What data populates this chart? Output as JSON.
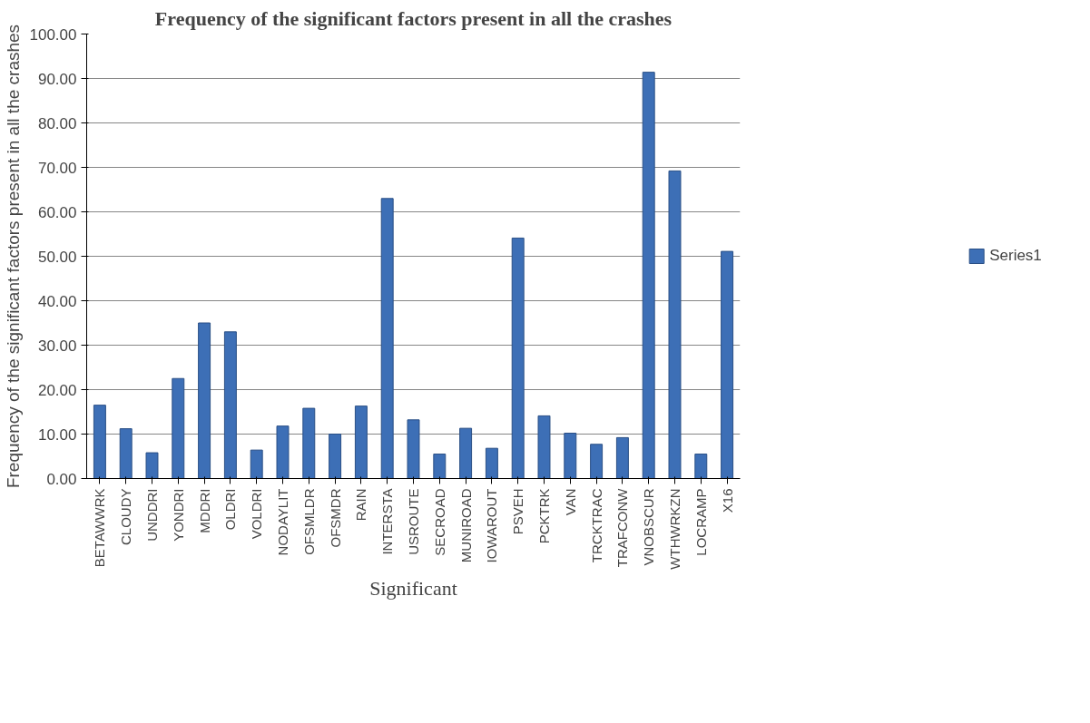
{
  "chart_data": {
    "type": "bar",
    "title": "Frequency of the significant factors present in all the crashes",
    "xlabel": "Significant",
    "ylabel": "Frequency of the significant factors present in all the crashes",
    "categories": [
      "BETAWWRK",
      "CLOUDY",
      "UNDDRI",
      "YONDRI",
      "MDDRI",
      "OLDRI",
      "VOLDRI",
      "NODAYLIT",
      "OFSMLDR",
      "OFSMDR",
      "RAIN",
      "INTERSTA",
      "USROUTE",
      "SECROAD",
      "MUNIROAD",
      "IOWAROUT",
      "PSVEH",
      "PCKTRK",
      "VAN",
      "TRCKTRAC",
      "TRAFCONW",
      "VNOBSCUR",
      "WTHWRKZN",
      "LOCRAMP",
      "X16"
    ],
    "series": [
      {
        "name": "Series1",
        "color": "#3d6fb6",
        "values": [
          16.5,
          11.2,
          5.8,
          22.5,
          35,
          33,
          6.4,
          11.8,
          15.8,
          10,
          16.3,
          63,
          13.2,
          5.5,
          11.3,
          6.8,
          54.1,
          14.1,
          10.2,
          7.7,
          9.2,
          91.4,
          69.2,
          5.5,
          51.1
        ]
      }
    ],
    "ylim": [
      0,
      100
    ],
    "yticks": [
      {
        "value": 0,
        "label": "0.00"
      },
      {
        "value": 10,
        "label": "10.00"
      },
      {
        "value": 20,
        "label": "20.00"
      },
      {
        "value": 30,
        "label": "30.00"
      },
      {
        "value": 40,
        "label": "40.00"
      },
      {
        "value": 50,
        "label": "50.00"
      },
      {
        "value": 60,
        "label": "60.00"
      },
      {
        "value": 70,
        "label": "70.00"
      },
      {
        "value": 80,
        "label": "80.00"
      },
      {
        "value": 90,
        "label": "90.00"
      },
      {
        "value": 100,
        "label": "100.00"
      }
    ],
    "grid": "y",
    "legend": "right"
  }
}
